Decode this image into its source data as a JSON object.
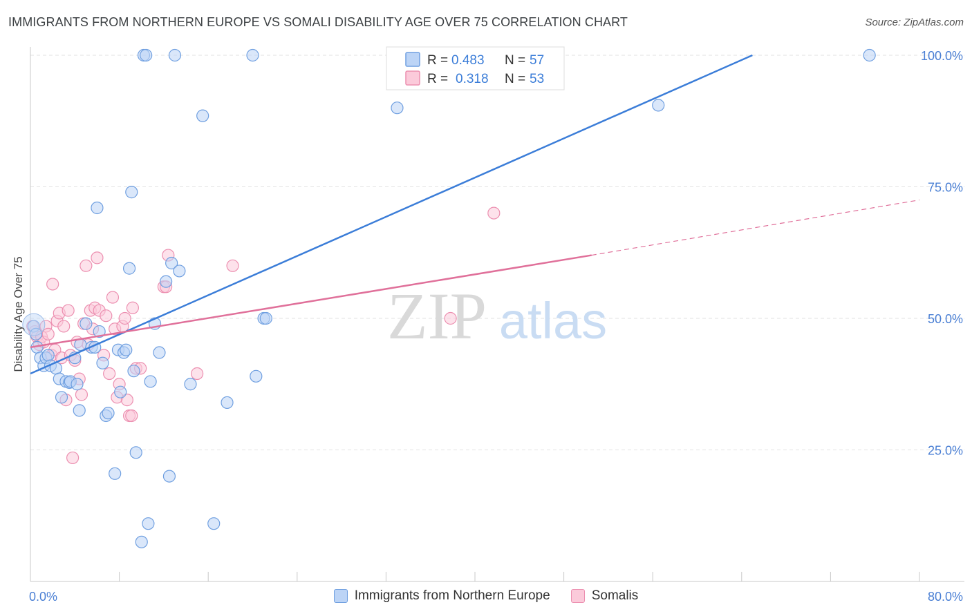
{
  "title": "IMMIGRANTS FROM NORTHERN EUROPE VS SOMALI DISABILITY AGE OVER 75 CORRELATION CHART",
  "source": "Source: ZipAtlas.com",
  "colors": {
    "blue": "#3b7dd8",
    "blue_fill": "#bcd4f6",
    "pink": "#e0709a",
    "pink_fill": "#fbcada",
    "axis_label": "#4a7fd4"
  },
  "chart_data": {
    "type": "scatter",
    "ylabel": "Disability Age Over 75",
    "xlim": [
      0,
      80
    ],
    "ylim": [
      0,
      105
    ],
    "x_tick_labels": [
      {
        "value": 0,
        "label": "0.0%"
      },
      {
        "value": 80,
        "label": "80.0%"
      }
    ],
    "y_tick_labels": [
      {
        "value": 25,
        "label": "25.0%"
      },
      {
        "value": 50,
        "label": "50.0%"
      },
      {
        "value": 75,
        "label": "75.0%"
      },
      {
        "value": 100,
        "label": "100.0%"
      }
    ],
    "watermark": {
      "zip": "ZIP",
      "atlas": "atlas"
    },
    "legend": [
      {
        "r_label": "R =",
        "r_value": "0.483",
        "n_label": "N =",
        "n_value": "57"
      },
      {
        "r_label": "R =",
        "r_value": "0.318",
        "n_label": "N =",
        "n_value": "53"
      }
    ],
    "series": [
      {
        "name": "Immigrants from Northern Europe",
        "color": "blue",
        "trend": {
          "x0": 0,
          "y0": 39.5,
          "x1": 80,
          "y1": 114
        },
        "points": [
          [
            0.3,
            48.5
          ],
          [
            0.5,
            47
          ],
          [
            0.6,
            44.5
          ],
          [
            0.9,
            42.5
          ],
          [
            1.2,
            41
          ],
          [
            1.4,
            42.5
          ],
          [
            1.6,
            43
          ],
          [
            1.8,
            41
          ],
          [
            2.3,
            40.5
          ],
          [
            2.6,
            38.5
          ],
          [
            2.8,
            35
          ],
          [
            3.2,
            38
          ],
          [
            3.5,
            37.8
          ],
          [
            3.6,
            38
          ],
          [
            4.0,
            42.5
          ],
          [
            4.2,
            37.5
          ],
          [
            4.4,
            32.5
          ],
          [
            4.5,
            45
          ],
          [
            5.0,
            49
          ],
          [
            5.5,
            44.5
          ],
          [
            5.8,
            44.5
          ],
          [
            6.0,
            71
          ],
          [
            6.2,
            47.5
          ],
          [
            6.5,
            41.5
          ],
          [
            6.8,
            31.5
          ],
          [
            7.0,
            32
          ],
          [
            7.6,
            20.5
          ],
          [
            7.9,
            44
          ],
          [
            8.1,
            36
          ],
          [
            8.4,
            43.5
          ],
          [
            8.6,
            44
          ],
          [
            8.9,
            59.5
          ],
          [
            9.1,
            74
          ],
          [
            9.3,
            40
          ],
          [
            9.5,
            24.5
          ],
          [
            10.0,
            7.5
          ],
          [
            10.2,
            100
          ],
          [
            10.4,
            100
          ],
          [
            10.6,
            11
          ],
          [
            10.8,
            38
          ],
          [
            11.2,
            49
          ],
          [
            11.6,
            43.5
          ],
          [
            12.2,
            57
          ],
          [
            12.5,
            20
          ],
          [
            12.7,
            60.5
          ],
          [
            13.0,
            100
          ],
          [
            13.4,
            59
          ],
          [
            14.4,
            37.5
          ],
          [
            15.5,
            88.5
          ],
          [
            16.5,
            11
          ],
          [
            17.7,
            34
          ],
          [
            20.0,
            100
          ],
          [
            20.3,
            39
          ],
          [
            21.0,
            50
          ],
          [
            21.2,
            50
          ],
          [
            33.0,
            90
          ],
          [
            56.5,
            90.5
          ],
          [
            75.5,
            100
          ]
        ]
      },
      {
        "name": "Somalis",
        "color": "pink",
        "trend": {
          "x0": 0,
          "y0": 44.5,
          "x1": 50.5,
          "y1": 62,
          "dash_x1": 80,
          "dash_y1": 72.5
        },
        "points": [
          [
            0.2,
            48.5
          ],
          [
            0.4,
            47.5
          ],
          [
            0.6,
            46.5
          ],
          [
            0.8,
            45
          ],
          [
            1.0,
            46.5
          ],
          [
            1.2,
            45.5
          ],
          [
            1.4,
            48.5
          ],
          [
            1.6,
            47
          ],
          [
            1.9,
            43
          ],
          [
            2.0,
            56.5
          ],
          [
            2.2,
            44
          ],
          [
            2.4,
            49.5
          ],
          [
            2.6,
            51
          ],
          [
            2.8,
            42.5
          ],
          [
            3.0,
            48.5
          ],
          [
            3.2,
            34.5
          ],
          [
            3.4,
            51.5
          ],
          [
            3.6,
            43
          ],
          [
            3.8,
            23.5
          ],
          [
            4.0,
            42
          ],
          [
            4.2,
            45.5
          ],
          [
            4.4,
            38.5
          ],
          [
            4.6,
            35.5
          ],
          [
            4.8,
            49
          ],
          [
            5.0,
            60
          ],
          [
            5.2,
            45
          ],
          [
            5.4,
            51.5
          ],
          [
            5.6,
            48
          ],
          [
            5.8,
            52
          ],
          [
            6.0,
            61.5
          ],
          [
            6.2,
            51.5
          ],
          [
            6.6,
            43
          ],
          [
            6.8,
            50.5
          ],
          [
            7.1,
            39.5
          ],
          [
            7.4,
            54
          ],
          [
            7.6,
            48
          ],
          [
            7.8,
            35
          ],
          [
            8.0,
            37.5
          ],
          [
            8.3,
            48.5
          ],
          [
            8.5,
            50
          ],
          [
            8.7,
            34.5
          ],
          [
            8.9,
            31.5
          ],
          [
            9.1,
            31.5
          ],
          [
            9.2,
            52
          ],
          [
            9.5,
            40.5
          ],
          [
            9.9,
            40.5
          ],
          [
            12.0,
            56
          ],
          [
            12.2,
            56
          ],
          [
            12.4,
            62
          ],
          [
            15.0,
            39.5
          ],
          [
            18.2,
            60
          ],
          [
            37.8,
            50
          ],
          [
            41.7,
            70
          ]
        ]
      }
    ]
  },
  "bottom_legend": [
    "Immigrants from Northern Europe",
    "Somalis"
  ]
}
